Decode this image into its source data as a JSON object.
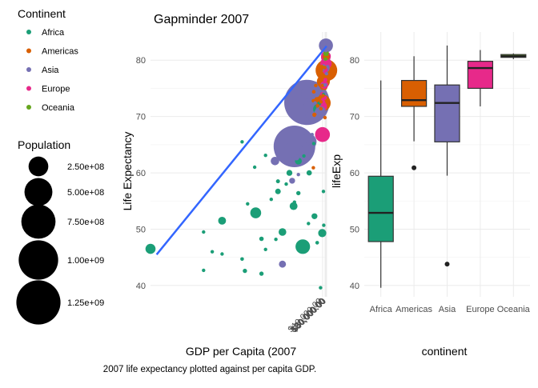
{
  "legend": {
    "continent_title": "Continent",
    "continents": [
      {
        "name": "Africa",
        "color": "#1B9E77"
      },
      {
        "name": "Americas",
        "color": "#D95F02"
      },
      {
        "name": "Asia",
        "color": "#7570B3"
      },
      {
        "name": "Europe",
        "color": "#E7298A"
      },
      {
        "name": "Oceania",
        "color": "#66A61E"
      }
    ],
    "population_title": "Population",
    "population_breaks": [
      {
        "label": "2.50e+08",
        "value": 250000000
      },
      {
        "label": "5.00e+08",
        "value": 500000000
      },
      {
        "label": "7.50e+08",
        "value": 750000000
      },
      {
        "label": "1.00e+09",
        "value": 1000000000
      },
      {
        "label": "1.25e+09",
        "value": 1250000000
      }
    ]
  },
  "caption": "2007 life expectancy plotted against per capita GDP.",
  "chart_data": [
    {
      "type": "scatter",
      "title": "Gapminder 2007",
      "xlabel": "GDP per Capita (2007",
      "ylabel": "Life Expectancy",
      "x_scale": "reciprocal",
      "xlim": [
        280,
        55000
      ],
      "ylim": [
        38,
        85
      ],
      "x_ticks": [
        {
          "label": "$10,000.00",
          "value": 10000
        },
        {
          "label": "$20,000.00",
          "value": 20000
        },
        {
          "label": "$30,000.00",
          "value": 30000
        },
        {
          "label": "$40,000.00",
          "value": 40000
        },
        {
          "label": "$50,000.00",
          "value": 50000
        }
      ],
      "y_ticks": [
        40,
        50,
        60,
        70,
        80
      ],
      "trend_line": {
        "color": "#3366FF",
        "x_start": 290,
        "x_end": 50000,
        "y_start": 45.5,
        "y_end": 82.5
      },
      "points": [
        {
          "continent": "Asia",
          "x": 2400,
          "y": 72.5,
          "pop": 1320000000
        },
        {
          "continent": "Asia",
          "x": 1500,
          "y": 64.7,
          "pop": 1110000000
        },
        {
          "continent": "Asia",
          "x": 3700,
          "y": 70.7,
          "pop": 223000000
        },
        {
          "continent": "Americas",
          "x": 42000,
          "y": 78.2,
          "pop": 301000000
        },
        {
          "continent": "Americas",
          "x": 9000,
          "y": 72.4,
          "pop": 190000000
        },
        {
          "continent": "Asia",
          "x": 2600,
          "y": 65.5,
          "pop": 169000000
        },
        {
          "continent": "Asia",
          "x": 1400,
          "y": 64.1,
          "pop": 150000000
        },
        {
          "continent": "Africa",
          "x": 2000,
          "y": 46.9,
          "pop": 135000000
        },
        {
          "continent": "Asia",
          "x": 31000,
          "y": 82.6,
          "pop": 127000000
        },
        {
          "continent": "Europe",
          "x": 9800,
          "y": 66.8,
          "pop": 142000000
        },
        {
          "continent": "Americas",
          "x": 11900,
          "y": 76.2,
          "pop": 108000000
        },
        {
          "continent": "Asia",
          "x": 2700,
          "y": 71.7,
          "pop": 91000000
        },
        {
          "continent": "Asia",
          "x": 2400,
          "y": 74.2,
          "pop": 85000000
        },
        {
          "continent": "Europe",
          "x": 32000,
          "y": 79.4,
          "pop": 82000000
        },
        {
          "continent": "Africa",
          "x": 690,
          "y": 52.9,
          "pop": 76000000
        },
        {
          "continent": "Africa",
          "x": 5600,
          "y": 71.3,
          "pop": 80000000
        },
        {
          "continent": "Africa",
          "x": 280,
          "y": 46.5,
          "pop": 65000000
        },
        {
          "continent": "Europe",
          "x": 30000,
          "y": 80.7,
          "pop": 61000000
        },
        {
          "continent": "Europe",
          "x": 28000,
          "y": 80.5,
          "pop": 58000000
        },
        {
          "continent": "Oceania",
          "x": 34000,
          "y": 81.2,
          "pop": 20400000
        },
        {
          "continent": "Oceania",
          "x": 25000,
          "y": 80.2,
          "pop": 4100000
        },
        {
          "continent": "Asia",
          "x": 1100,
          "y": 43.8,
          "pop": 31900000
        },
        {
          "continent": "Africa",
          "x": 9300,
          "y": 49.3,
          "pop": 43000000
        },
        {
          "continent": "Africa",
          "x": 1460,
          "y": 54.1,
          "pop": 40000000
        },
        {
          "continent": "Africa",
          "x": 1100,
          "y": 49.5,
          "pop": 38000000
        },
        {
          "continent": "Americas",
          "x": 12800,
          "y": 75.3,
          "pop": 40000000
        },
        {
          "continent": "Asia",
          "x": 5400,
          "y": 70.6,
          "pop": 47000000
        },
        {
          "continent": "Africa",
          "x": 470,
          "y": 51.5,
          "pop": 39000000
        },
        {
          "continent": "Asia",
          "x": 7000,
          "y": 70.9,
          "pop": 70000000
        },
        {
          "continent": "Asia",
          "x": 944,
          "y": 62.1,
          "pop": 47000000
        },
        {
          "continent": "Asia",
          "x": 4500,
          "y": 74.0,
          "pop": 26000000
        },
        {
          "continent": "Asia",
          "x": 12000,
          "y": 74.2,
          "pop": 24000000
        },
        {
          "continent": "Africa",
          "x": 3800,
          "y": 52.3,
          "pop": 22000000
        },
        {
          "continent": "Africa",
          "x": 1300,
          "y": 60.0,
          "pop": 22000000
        },
        {
          "continent": "Americas",
          "x": 36000,
          "y": 80.6,
          "pop": 33000000
        },
        {
          "continent": "Europe",
          "x": 15000,
          "y": 75.6,
          "pop": 38500000
        },
        {
          "continent": "Asia",
          "x": 22000,
          "y": 78.6,
          "pop": 49000000
        },
        {
          "continent": "Asia",
          "x": 29000,
          "y": 80.0,
          "pop": 10000000
        },
        {
          "continent": "Americas",
          "x": 6000,
          "y": 72.9,
          "pop": 28000000
        },
        {
          "continent": "Africa",
          "x": 600,
          "y": 42.6,
          "pop": 12000000
        },
        {
          "continent": "Africa",
          "x": 750,
          "y": 42.1,
          "pop": 12000000
        },
        {
          "continent": "Africa",
          "x": 1000,
          "y": 56.7,
          "pop": 20000000
        },
        {
          "continent": "Africa",
          "x": 400,
          "y": 42.7,
          "pop": 6000000
        },
        {
          "continent": "Africa",
          "x": 580,
          "y": 44.7,
          "pop": 9000000
        },
        {
          "continent": "Africa",
          "x": 750,
          "y": 48.3,
          "pop": 13000000
        },
        {
          "continent": "Africa",
          "x": 470,
          "y": 45.6,
          "pop": 7000000
        },
        {
          "continent": "Africa",
          "x": 2700,
          "y": 60.0,
          "pop": 18000000
        },
        {
          "continent": "Africa",
          "x": 12000,
          "y": 56.7,
          "pop": 2000000
        },
        {
          "continent": "Africa",
          "x": 4800,
          "y": 47.6,
          "pop": 9000000
        },
        {
          "continent": "Africa",
          "x": 620,
          "y": 54.5,
          "pop": 4000000
        },
        {
          "continent": "Africa",
          "x": 880,
          "y": 55.3,
          "pop": 8000000
        },
        {
          "continent": "Africa",
          "x": 1700,
          "y": 56.4,
          "pop": 12000000
        },
        {
          "continent": "Africa",
          "x": 800,
          "y": 46.4,
          "pop": 5000000
        },
        {
          "continent": "Africa",
          "x": 1500,
          "y": 54.8,
          "pop": 3000000
        },
        {
          "continent": "Africa",
          "x": 1000,
          "y": 58.5,
          "pop": 10000000
        },
        {
          "continent": "Africa",
          "x": 1700,
          "y": 62.1,
          "pop": 30000000
        },
        {
          "continent": "Africa",
          "x": 6000,
          "y": 72.3,
          "pop": 10000000
        },
        {
          "continent": "Africa",
          "x": 12000,
          "y": 73.9,
          "pop": 6000000
        },
        {
          "continent": "Africa",
          "x": 3600,
          "y": 65.2,
          "pop": 1000000
        },
        {
          "continent": "Africa",
          "x": 800,
          "y": 63.1,
          "pop": 2000000
        },
        {
          "continent": "Africa",
          "x": 2600,
          "y": 51.0,
          "pop": 1500000
        },
        {
          "continent": "Africa",
          "x": 7100,
          "y": 39.6,
          "pop": 1000000
        },
        {
          "continent": "Africa",
          "x": 13000,
          "y": 50.7,
          "pop": 1500000
        },
        {
          "continent": "Africa",
          "x": 580,
          "y": 65.5,
          "pop": 1500000
        },
        {
          "continent": "Africa",
          "x": 680,
          "y": 61.0,
          "pop": 3000000
        },
        {
          "continent": "Africa",
          "x": 1200,
          "y": 58.0,
          "pop": 4000000
        },
        {
          "continent": "Africa",
          "x": 960,
          "y": 48.2,
          "pop": 2000000
        },
        {
          "continent": "Africa",
          "x": 400,
          "y": 49.5,
          "pop": 3000000
        },
        {
          "continent": "Africa",
          "x": 2100,
          "y": 63.0,
          "pop": 5000000
        },
        {
          "continent": "Africa",
          "x": 430,
          "y": 46.0,
          "pop": 2000000
        },
        {
          "continent": "Americas",
          "x": 7000,
          "y": 76.4,
          "pop": 4000000
        },
        {
          "continent": "Americas",
          "x": 9000,
          "y": 78.8,
          "pop": 11000000
        },
        {
          "continent": "Americas",
          "x": 5000,
          "y": 71.9,
          "pop": 9000000
        },
        {
          "continent": "Americas",
          "x": 3800,
          "y": 70.3,
          "pop": 12000000
        },
        {
          "continent": "Americas",
          "x": 8000,
          "y": 78.3,
          "pop": 3000000
        },
        {
          "continent": "Americas",
          "x": 10000,
          "y": 75.5,
          "pop": 3300000
        },
        {
          "continent": "Americas",
          "x": 18000,
          "y": 78.7,
          "pop": 4000000
        },
        {
          "continent": "Americas",
          "x": 11000,
          "y": 73.7,
          "pop": 6000000
        },
        {
          "continent": "Americas",
          "x": 7400,
          "y": 71.4,
          "pop": 6000000
        },
        {
          "continent": "Americas",
          "x": 3500,
          "y": 72.8,
          "pop": 7000000
        },
        {
          "continent": "Americas",
          "x": 3600,
          "y": 74.4,
          "pop": 9000000
        },
        {
          "continent": "Americas",
          "x": 3500,
          "y": 60.9,
          "pop": 8000000
        },
        {
          "continent": "Americas",
          "x": 4200,
          "y": 75.5,
          "pop": 5000000
        },
        {
          "continent": "Americas",
          "x": 7500,
          "y": 72.6,
          "pop": 2800000
        },
        {
          "continent": "Americas",
          "x": 19000,
          "y": 69.8,
          "pop": 1000000
        },
        {
          "continent": "Europe",
          "x": 36000,
          "y": 79.8,
          "pop": 8000000
        },
        {
          "continent": "Europe",
          "x": 33700,
          "y": 79.4,
          "pop": 10000000
        },
        {
          "continent": "Europe",
          "x": 10700,
          "y": 73.0,
          "pop": 7000000
        },
        {
          "continent": "Europe",
          "x": 22800,
          "y": 76.5,
          "pop": 10000000
        },
        {
          "continent": "Europe",
          "x": 35000,
          "y": 78.3,
          "pop": 5500000
        },
        {
          "continent": "Europe",
          "x": 27500,
          "y": 79.5,
          "pop": 11000000
        },
        {
          "continent": "Europe",
          "x": 18000,
          "y": 73.3,
          "pop": 10000000
        },
        {
          "continent": "Europe",
          "x": 20500,
          "y": 77.9,
          "pop": 10600000
        },
        {
          "continent": "Europe",
          "x": 10000,
          "y": 72.5,
          "pop": 21500000
        },
        {
          "continent": "Europe",
          "x": 15800,
          "y": 75.6,
          "pop": 38500000
        },
        {
          "continent": "Europe",
          "x": 8400,
          "y": 71.8,
          "pop": 71000000
        },
        {
          "continent": "Europe",
          "x": 9200,
          "y": 74.0,
          "pop": 10000000
        },
        {
          "continent": "Asia",
          "x": 29800,
          "y": 81.7,
          "pop": 7000000
        },
        {
          "continent": "Asia",
          "x": 4000,
          "y": 72.4,
          "pop": 3000000
        },
        {
          "continent": "Asia",
          "x": 47300,
          "y": 77.6,
          "pop": 2500000
        },
        {
          "continent": "Asia",
          "x": 21600,
          "y": 75.6,
          "pop": 3000000
        },
        {
          "continent": "Asia",
          "x": 4900,
          "y": 70.0,
          "pop": 3000000
        },
        {
          "continent": "Asia",
          "x": 1400,
          "y": 58.6,
          "pop": 22000000
        },
        {
          "continent": "Asia",
          "x": 3200,
          "y": 66.8,
          "pop": 2800000
        },
        {
          "continent": "Asia",
          "x": 2500,
          "y": 65.2,
          "pop": 6000000
        },
        {
          "continent": "Asia",
          "x": 1700,
          "y": 59.7,
          "pop": 5000000
        },
        {
          "continent": "Asia",
          "x": 1600,
          "y": 62.7,
          "pop": 20000000
        },
        {
          "continent": "Asia",
          "x": 10400,
          "y": 75.6,
          "pop": 4500000
        }
      ]
    },
    {
      "type": "box",
      "title": "",
      "xlabel": "continent",
      "ylabel": "lifeExp",
      "ylim": [
        38,
        85
      ],
      "y_ticks": [
        40,
        50,
        60,
        70,
        80
      ],
      "categories": [
        "Africa",
        "Americas",
        "Asia",
        "Europe",
        "Oceania"
      ],
      "boxes": [
        {
          "category": "Africa",
          "min": 39.6,
          "q1": 47.8,
          "median": 52.9,
          "q3": 59.4,
          "max": 76.4,
          "outliers": []
        },
        {
          "category": "Americas",
          "min": 65.6,
          "q1": 71.8,
          "median": 72.9,
          "q3": 76.4,
          "max": 80.7,
          "outliers": [
            60.9
          ]
        },
        {
          "category": "Asia",
          "min": 59.5,
          "q1": 65.5,
          "median": 72.4,
          "q3": 75.6,
          "max": 82.6,
          "outliers": [
            43.8
          ]
        },
        {
          "category": "Europe",
          "min": 71.8,
          "q1": 75.0,
          "median": 78.6,
          "q3": 79.8,
          "max": 81.8,
          "outliers": []
        },
        {
          "category": "Oceania",
          "min": 80.2,
          "q1": 80.5,
          "median": 80.7,
          "q3": 81.0,
          "max": 81.2,
          "outliers": []
        }
      ]
    }
  ]
}
